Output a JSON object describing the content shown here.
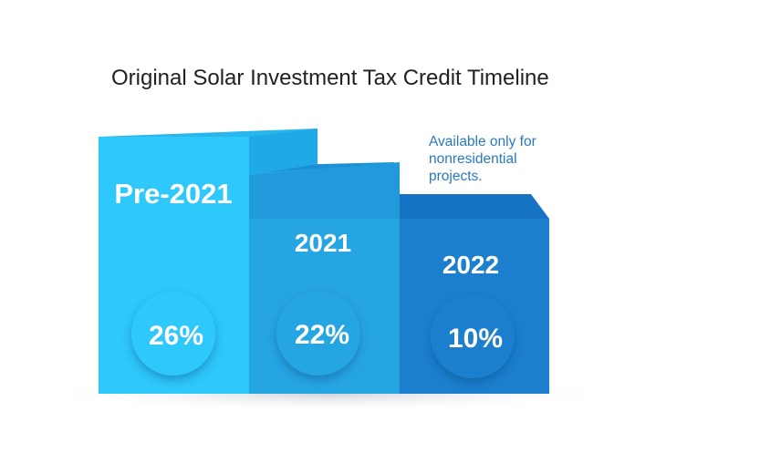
{
  "chart_data": {
    "type": "bar",
    "title": "Original Solar Investment Tax Credit Timeline",
    "categories": [
      "Pre-2021",
      "2021",
      "2022"
    ],
    "values": [
      26,
      22,
      10
    ],
    "value_labels": [
      "26%",
      "22%",
      "10%"
    ],
    "annotation": "Available only for nonresidential projects.",
    "colors": [
      "#2ec8fb",
      "#26a5e3",
      "#1b7fce"
    ]
  }
}
